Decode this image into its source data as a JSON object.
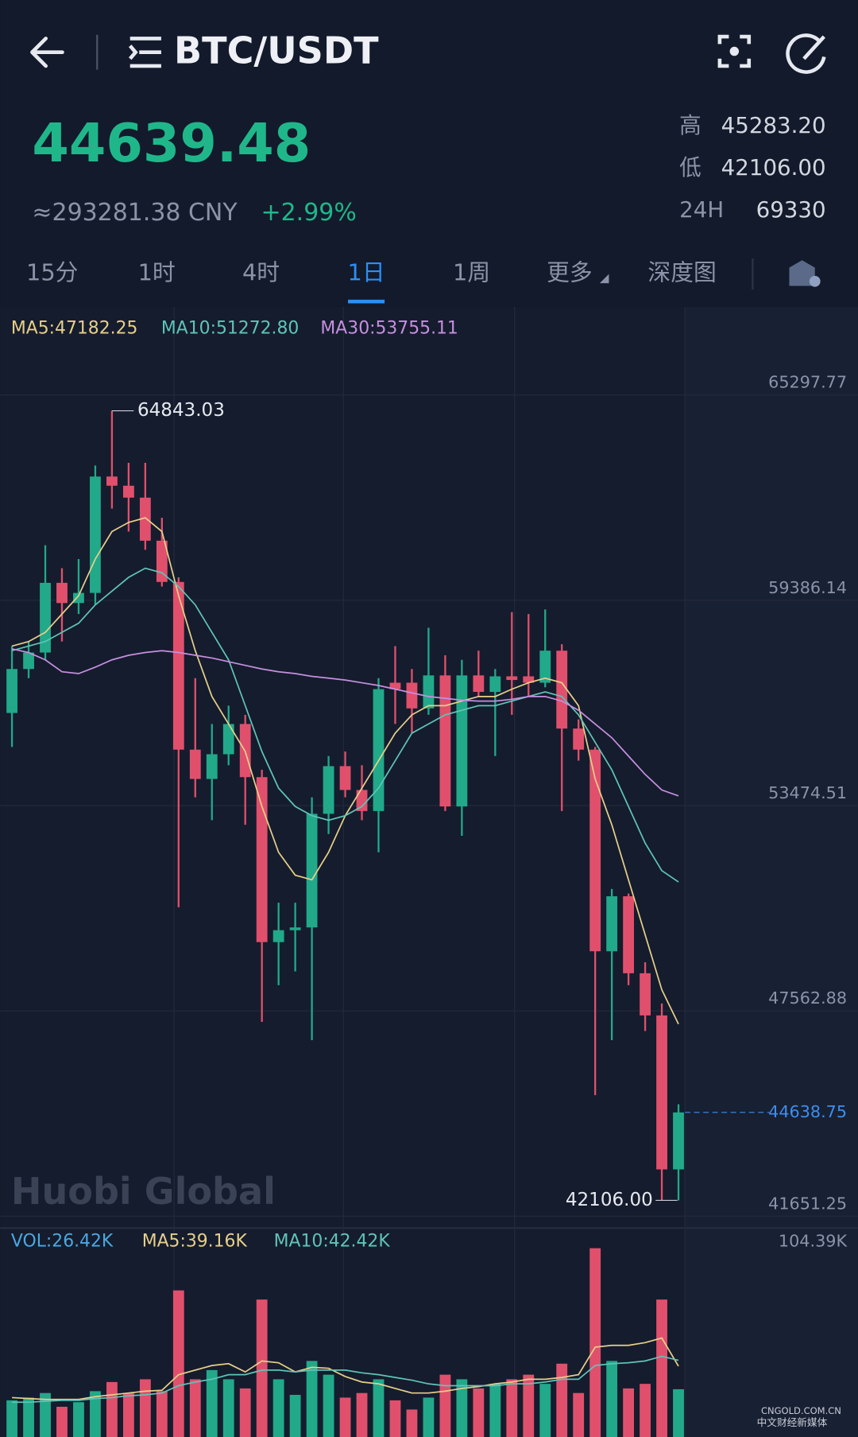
{
  "header": {
    "pair": "BTC/USDT"
  },
  "ticker": {
    "price": "44639.48",
    "cny": "≈293281.38 CNY",
    "change": "+2.99%",
    "high_label": "高",
    "high": "45283.20",
    "low_label": "低",
    "low": "42106.00",
    "vol_label": "24H",
    "vol": "69330"
  },
  "tabs": {
    "items": [
      "15分",
      "1时",
      "4时",
      "1日",
      "1周",
      "更多",
      "深度图"
    ],
    "active": 3
  },
  "watermark": "Huobi Global",
  "source": {
    "site": "CNGOLD.COM.CN",
    "tagline": "中文财经新媒体"
  },
  "chart_data": {
    "type": "candlestick",
    "up_color": "#21a98a",
    "down_color": "#e0506c",
    "ylim": [
      41309,
      67699
    ],
    "yticks": [
      65297.77,
      59386.14,
      53474.51,
      47562.88,
      41651.25
    ],
    "grid": true,
    "open": [
      56141,
      57407,
      57882,
      59888,
      59307,
      59598,
      62949,
      62685,
      62342,
      61102,
      59914,
      55085,
      54241,
      54953,
      55824,
      54293,
      49543,
      49886,
      49965,
      53238,
      54610,
      53924,
      53317,
      57012,
      57012,
      56273,
      57223,
      53449,
      57223,
      56748,
      57196,
      57196,
      57012,
      57935,
      55692,
      55085,
      49279,
      50863,
      48646,
      47432,
      42998
    ],
    "high": [
      58067,
      58199,
      60970,
      60310,
      60574,
      63266,
      64843.03,
      63345,
      63345,
      61762,
      60046,
      57143,
      55824,
      56352,
      56088,
      54504,
      50678,
      50678,
      53713,
      54900,
      55032,
      54636,
      57143,
      58067,
      57407,
      58595,
      57803,
      57671,
      57935,
      57407,
      59044,
      58991,
      59123,
      58120,
      55956,
      55164,
      51074,
      50942,
      48963,
      47775,
      44872
    ],
    "low": [
      55164,
      57143,
      57671,
      58199,
      58991,
      59255,
      62026,
      61366,
      60838,
      59782,
      50546,
      53713,
      53053,
      54636,
      52921,
      47247,
      48303,
      48699,
      46719,
      52657,
      53713,
      53053,
      52129,
      55824,
      55560,
      56088,
      53317,
      52604,
      56616,
      54900,
      56088,
      56616,
      56880,
      53317,
      54768,
      45136,
      46719,
      48303,
      46983,
      42106,
      42106
    ],
    "close": [
      57407,
      57882,
      59888,
      59307,
      59598,
      62949,
      62685,
      62342,
      61102,
      59914,
      55085,
      54241,
      54953,
      55824,
      54293,
      49543,
      49886,
      49965,
      53238,
      54610,
      53924,
      53317,
      56827,
      56827,
      56273,
      57223,
      53449,
      57223,
      56748,
      57196,
      57091,
      57012,
      57935,
      55692,
      55085,
      49279,
      50863,
      48646,
      47432,
      42998,
      44638.75
    ],
    "max_label": 64843.03,
    "min_label": {
      "value": 42106,
      "label": "42106.00"
    },
    "last_price": 44638.75,
    "ma_lines": [
      {
        "label": "MA5:47182.25",
        "color": "#e6cf8a",
        "values": [
          58067,
          58199,
          58463,
          58991,
          59519,
          60574,
          61366,
          61630,
          61762,
          61366,
          59519,
          57935,
          56616,
          55824,
          55032,
          53449,
          52129,
          51470,
          51338,
          52129,
          53185,
          53977,
          54768,
          55560,
          56088,
          56352,
          56352,
          56484,
          56616,
          56616,
          56827,
          57012,
          57143,
          57012,
          56352,
          54241,
          52921,
          51338,
          49754,
          48171,
          47182.25
        ]
      },
      {
        "label": "MA10:51272.80",
        "color": "#5fc4b8",
        "values": [
          57935,
          58067,
          58199,
          58463,
          58727,
          59255,
          59651,
          60046,
          60310,
          60178,
          59782,
          59255,
          58463,
          57671,
          56352,
          55032,
          53977,
          53449,
          53185,
          53053,
          53185,
          53449,
          53977,
          54768,
          55560,
          55824,
          56088,
          56220,
          56352,
          56352,
          56484,
          56616,
          56748,
          56616,
          56088,
          55296,
          54504,
          53449,
          52393,
          51602,
          51272.8
        ]
      },
      {
        "label": "MA30:53755.11",
        "color": "#c68fe0",
        "values": [
          57988,
          57882,
          57671,
          57328,
          57275,
          57460,
          57671,
          57803,
          57882,
          57935,
          57882,
          57803,
          57724,
          57619,
          57513,
          57407,
          57328,
          57275,
          57196,
          57143,
          57091,
          57012,
          56932,
          56827,
          56721,
          56616,
          56563,
          56510,
          56484,
          56484,
          56537,
          56616,
          56616,
          56484,
          56220,
          55824,
          55428,
          54900,
          54373,
          53924,
          53755.11
        ]
      }
    ],
    "volume": {
      "ylim": [
        0,
        104.39
      ],
      "ytick": {
        "value": 104.39,
        "label": "104.39K"
      },
      "label": "VOL:26.42K",
      "color": "#4aa8e0",
      "values": [
        20.27,
        21.79,
        24.32,
        16.72,
        19.25,
        25.34,
        30.4,
        24.32,
        31.92,
        25.34,
        81.07,
        31.92,
        36.99,
        31.92,
        26.86,
        76.01,
        31.92,
        23.31,
        42.06,
        34.46,
        21.79,
        24.32,
        31.92,
        20.27,
        15.2,
        21.79,
        34.46,
        31.92,
        26.86,
        29.39,
        31.92,
        34.46,
        29.39,
        40.54,
        24.32,
        104.39,
        42.06,
        26.86,
        29.39,
        76.01,
        26.42
      ],
      "ma_lines": [
        {
          "label": "MA5:39.16K",
          "color": "#e6cf8a",
          "values": [
            21.79,
            21.28,
            20.77,
            20.77,
            20.77,
            22.29,
            23.31,
            24.32,
            25.34,
            25.84,
            34.46,
            36.99,
            39.52,
            40.54,
            35.98,
            42.06,
            41.04,
            35.98,
            38.51,
            38.0,
            33.44,
            30.4,
            29.39,
            26.86,
            24.32,
            24.32,
            25.34,
            26.86,
            27.87,
            29.39,
            30.4,
            31.92,
            31.92,
            32.94,
            34.46,
            49.66,
            50.67,
            50.67,
            52.19,
            54.72,
            39.16
          ]
        },
        {
          "label": "MA10:42.42K",
          "color": "#5fc4b8",
          "values": [
            19.25,
            19.25,
            19.76,
            20.27,
            20.27,
            21.28,
            21.79,
            22.8,
            23.31,
            24.32,
            28.38,
            30.4,
            31.92,
            34.46,
            34.46,
            36.99,
            36.99,
            35.98,
            36.99,
            36.99,
            36.99,
            35.47,
            34.46,
            32.94,
            31.42,
            29.39,
            28.38,
            28.38,
            28.38,
            28.38,
            29.39,
            29.39,
            30.4,
            31.92,
            31.92,
            39.52,
            40.54,
            41.04,
            42.06,
            44.59,
            42.42
          ]
        }
      ]
    }
  }
}
